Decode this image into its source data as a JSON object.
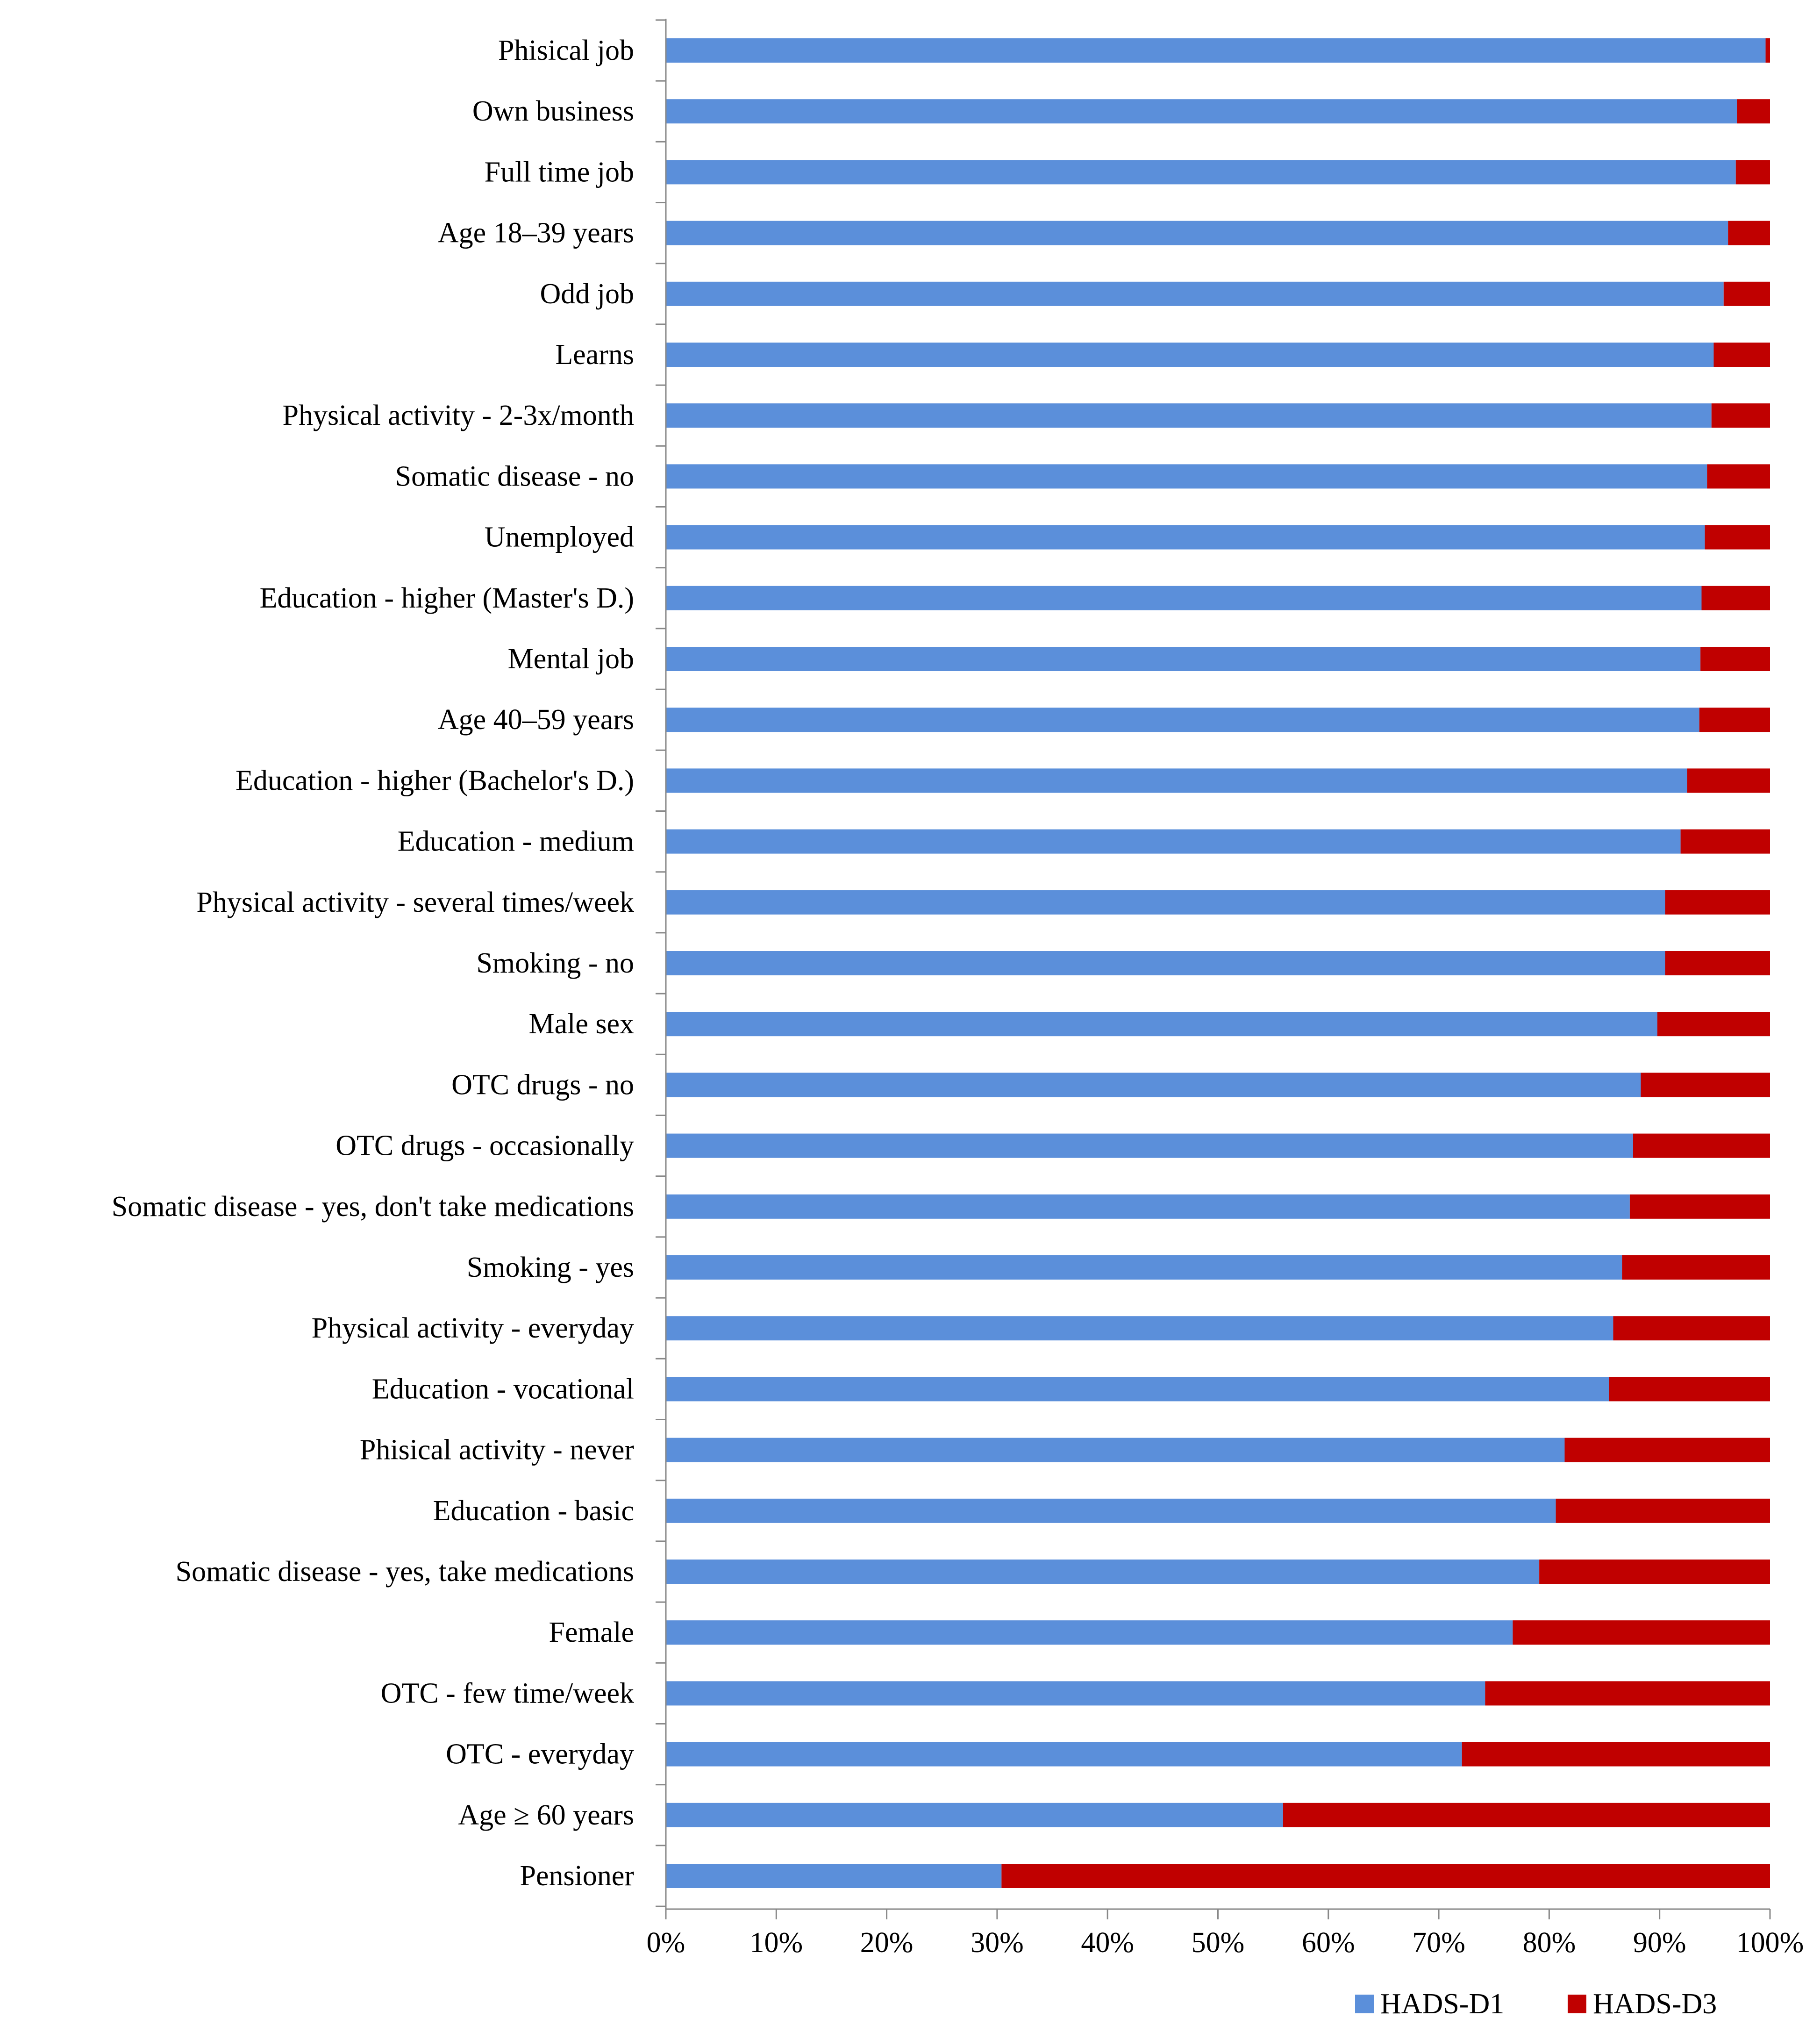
{
  "chart_data": {
    "type": "bar",
    "orientation": "horizontal",
    "stacked": true,
    "percent_stacked": true,
    "title": "",
    "xlabel": "",
    "ylabel": "",
    "xlim": [
      0,
      100
    ],
    "x_ticks": [
      "0%",
      "10%",
      "20%",
      "30%",
      "40%",
      "50%",
      "60%",
      "70%",
      "80%",
      "90%",
      "100%"
    ],
    "grid": false,
    "legend_position": "bottom-right",
    "categories": [
      "Phisical job",
      "Own business",
      "Full time job",
      "Age 18–39 years",
      "Odd job",
      "Learns",
      "Physical activity - 2-3x/month",
      "Somatic disease - no",
      "Unemployed",
      "Education - higher (Master's D.)",
      "Mental job",
      "Age 40–59 years",
      "Education - higher (Bachelor's D.)",
      "Education - medium",
      "Physical activity - several times/week",
      "Smoking - no",
      "Male sex",
      "OTC drugs - no",
      "OTC drugs - occasionally",
      "Somatic disease - yes, don't take medications",
      "Smoking - yes",
      "Physical activity - everyday",
      "Education - vocational",
      "Phisical activity - never",
      "Education - basic",
      "Somatic disease - yes, take medications",
      "Female",
      "OTC - few time/week",
      "OTC - everyday",
      "Age ≥ 60 years",
      "Pensioner"
    ],
    "series": [
      {
        "name": "HADS-D1",
        "color": "#5b8fda",
        "values": [
          99.6,
          97.0,
          96.9,
          96.2,
          95.8,
          94.9,
          94.7,
          94.3,
          94.1,
          93.8,
          93.7,
          93.6,
          92.5,
          91.9,
          90.5,
          90.5,
          89.8,
          88.3,
          87.6,
          87.3,
          86.6,
          85.8,
          85.4,
          81.4,
          80.6,
          79.1,
          76.7,
          74.2,
          72.1,
          55.9,
          30.4
        ]
      },
      {
        "name": "HADS-D3",
        "color": "#c00000",
        "values": [
          0.4,
          3.0,
          3.1,
          3.8,
          4.2,
          5.1,
          5.3,
          5.7,
          5.9,
          6.2,
          6.3,
          6.4,
          7.5,
          8.1,
          9.5,
          9.5,
          10.2,
          11.7,
          12.4,
          12.7,
          13.4,
          14.2,
          14.6,
          18.6,
          19.4,
          20.9,
          23.3,
          25.8,
          27.9,
          44.1,
          69.6
        ]
      }
    ]
  }
}
